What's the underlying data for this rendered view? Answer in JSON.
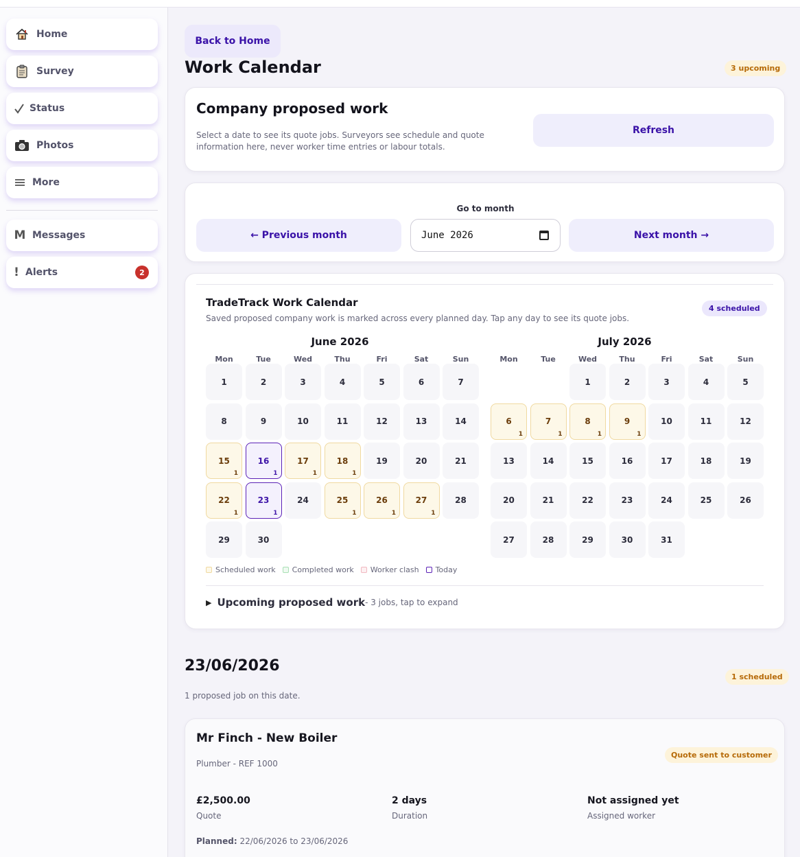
{
  "sidebar": {
    "items": [
      {
        "label": "Home",
        "icon": "house-icon"
      },
      {
        "label": "Survey",
        "icon": "clipboard-icon"
      },
      {
        "label": "Status",
        "icon": "check-icon"
      },
      {
        "label": "Photos",
        "icon": "camera-icon"
      },
      {
        "label": "More",
        "icon": "menu-icon"
      }
    ],
    "secondary": [
      {
        "label": "Messages",
        "icon": "letter-m-icon",
        "glyph": "M"
      },
      {
        "label": "Alerts",
        "icon": "exclamation-icon",
        "glyph": "!",
        "badge": "2"
      }
    ]
  },
  "header": {
    "back_label": "Back to Home",
    "title": "Work Calendar",
    "upcoming_badge": "3 upcoming"
  },
  "proposed": {
    "title": "Company proposed work",
    "description": "Select a date to see its quote jobs. Surveyors see schedule and quote information here, never worker time entries or labour totals.",
    "refresh_label": "Refresh"
  },
  "month_nav": {
    "go_label": "Go to month",
    "prev_label": "← Previous month",
    "next_label": "Next month →",
    "month_value": "June 2026"
  },
  "calendar": {
    "title": "TradeTrack Work Calendar",
    "subtitle": "Saved proposed company work is marked across every planned day. Tap any day to see its quote jobs.",
    "scheduled_badge": "4 scheduled",
    "weekdays": [
      "Mon",
      "Tue",
      "Wed",
      "Thu",
      "Fri",
      "Sat",
      "Sun"
    ],
    "months": [
      {
        "name": "June 2026",
        "start_offset": 0,
        "days": 30,
        "scheduled": {
          "15": 1,
          "16": 1,
          "17": 1,
          "18": 1,
          "22": 1,
          "23": 1,
          "25": 1,
          "26": 1,
          "27": 1
        },
        "today": [
          16,
          23
        ]
      },
      {
        "name": "July 2026",
        "start_offset": 2,
        "days": 31,
        "scheduled": {
          "6": 1,
          "7": 1,
          "8": 1,
          "9": 1
        },
        "today": []
      }
    ],
    "legend": [
      {
        "label": "Scheduled work",
        "color": "#f0d9a0",
        "fill": "#fdf8e8"
      },
      {
        "label": "Completed work",
        "color": "#a8e0b4",
        "fill": "#effaf1"
      },
      {
        "label": "Worker clash",
        "color": "#f1b8c0",
        "fill": "#fdf0f2"
      },
      {
        "label": "Today",
        "color": "#5b21b6",
        "fill": "#ffffff"
      }
    ],
    "upcoming": {
      "label": "Upcoming proposed work",
      "suffix": " - 3 jobs, tap to expand"
    }
  },
  "selected_date": {
    "date": "23/06/2026",
    "badge": "1 scheduled",
    "summary": "1 proposed job on this date."
  },
  "job": {
    "title": "Mr Finch - New Boiler",
    "status": "Quote sent to customer",
    "subtitle": "Plumber - REF 1000",
    "quote_value": "£2,500.00",
    "quote_label": "Quote",
    "duration_value": "2 days",
    "duration_label": "Duration",
    "worker_value": "Not assigned yet",
    "worker_label": "Assigned worker",
    "planned_label": "Planned:",
    "planned_value": " 22/06/2026 to 23/06/2026"
  }
}
